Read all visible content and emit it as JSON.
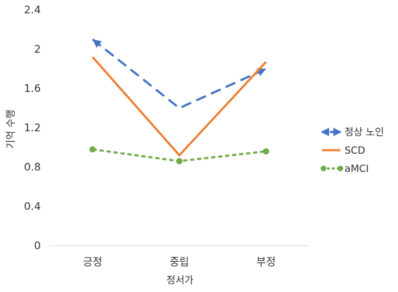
{
  "chart_data": {
    "type": "line",
    "title": "",
    "xlabel": "정서가",
    "ylabel": "기억 수행",
    "categories": [
      "긍정",
      "중립",
      "부정"
    ],
    "ylim": [
      0,
      2.4
    ],
    "yticks": [
      "0",
      "0.4",
      "0.8",
      "1.2",
      "1.6",
      "2",
      "2.4"
    ],
    "grid": false,
    "legend_position": "right",
    "series": [
      {
        "name": "정상 노인",
        "values": [
          2.1,
          1.4,
          1.8
        ],
        "color": "#4472C4",
        "line_style": "long-dash",
        "marker": "arrow"
      },
      {
        "name": "SCD",
        "values": [
          1.92,
          0.92,
          1.87
        ],
        "color": "#ED7D31",
        "line_style": "solid",
        "marker": "none"
      },
      {
        "name": "aMCI",
        "values": [
          0.98,
          0.86,
          0.96
        ],
        "color": "#70AD47",
        "line_style": "dash",
        "marker": "circle"
      }
    ]
  }
}
